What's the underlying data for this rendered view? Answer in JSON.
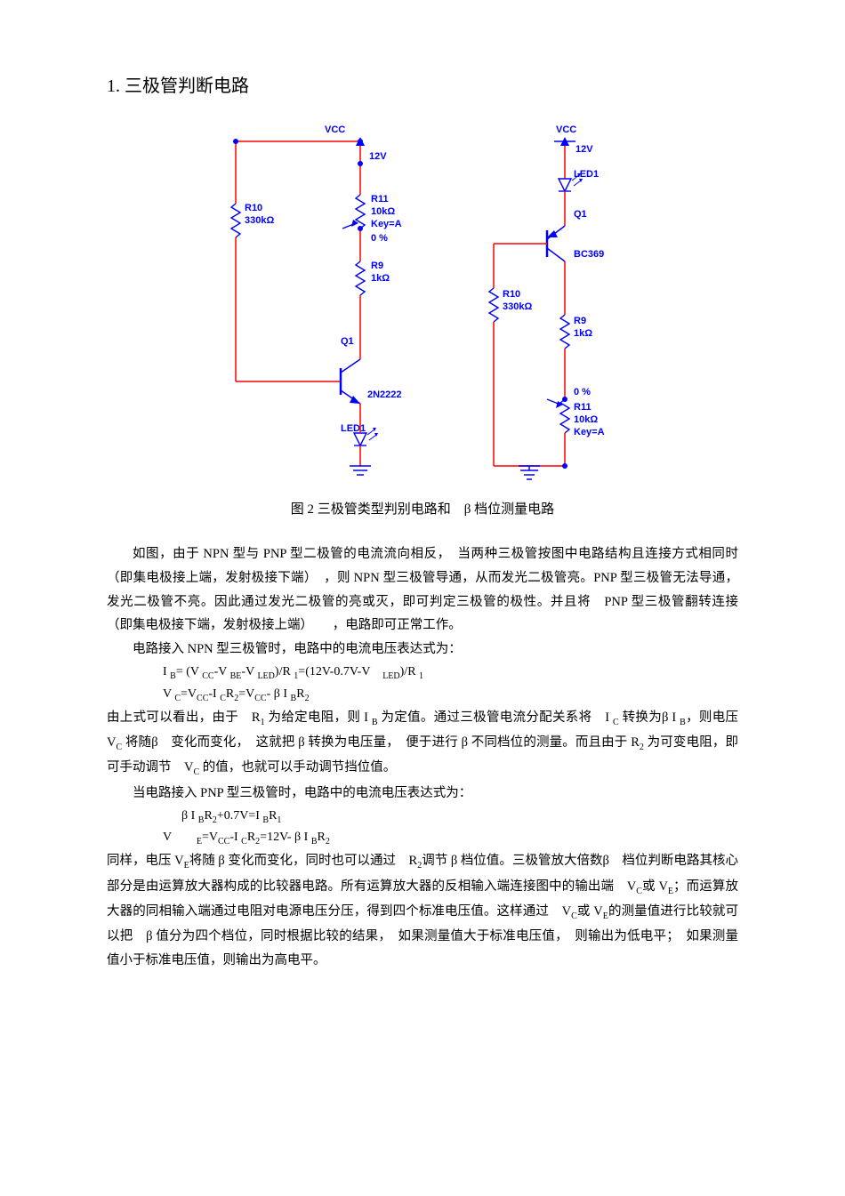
{
  "section_title": "1. 三极管判断电路",
  "caption": "图 2  三极管类型判别电路和　β 档位测量电路",
  "circuit_left": {
    "vcc_label": "VCC",
    "vcc_voltage": "12V",
    "r10_name": "R10",
    "r10_val": "330kΩ",
    "r11_name": "R11",
    "r11_val": "10kΩ",
    "r11_key": "Key=A",
    "r11_pct": "0 %",
    "r9_name": "R9",
    "r9_val": "1kΩ",
    "q1_name": "Q1",
    "q1_type": "2N2222",
    "led_name": "LED1",
    "colors": {
      "label": "#0000ff",
      "wire": "#ff0000",
      "bg": "#ffffff"
    }
  },
  "circuit_right": {
    "vcc_label": "VCC",
    "vcc_voltage": "12V",
    "led_name": "LED1",
    "q1_name": "Q1",
    "q1_type": "BC369",
    "r10_name": "R10",
    "r10_val": "330kΩ",
    "r9_name": "R9",
    "r9_val": "1kΩ",
    "r11_pct": "0 %",
    "r11_name": "R11",
    "r11_val": "10kΩ",
    "r11_key": "Key=A",
    "colors": {
      "label": "#0000ff",
      "wire": "#ff0000",
      "bg": "#ffffff"
    }
  },
  "paragraphs": {
    "p1": "如图，由于 NPN 型与 PNP 型二极管的电流流向相反，　当两种三极管按图中电路结构且连接方式相同时（即集电极接上端，发射极接下端）　，则 NPN 型三极管导通，从而发光二极管亮。PNP 型三极管无法导通，发光二极管不亮。因此通过发光二极管的亮或灭，即可判定三极管的极性。并且将　PNP 型三极管翻转连接（即集电极接下端，发射极接上端）　　，电路即可正常工作。",
    "p2": "电路接入 NPN 型三极管时，电路中的电流电压表达式为：",
    "f1_html": "I <span class='sub'>B</span>= (V <span class='sub'>CC</span>-V <span class='sub'>BE</span>-V <span class='sub'>LED</span>)/R <span class='sub'>1</span>=(12V-0.7V-V　<span class='sub'>LED</span>)/R <span class='sub'>1</span>",
    "f2_html": "V <span class='sub'>C</span>=V<span class='sub'>CC</span>-I <span class='sub'>C</span>R<span class='sub'>2</span>=V<span class='sub'>CC</span>- β I <span class='sub'>B</span>R<span class='sub'>2</span>",
    "p3_html": "由上式可以看出，由于　R<span class='sub'>1</span> 为给定电阻，则 I <span class='sub'>B</span> 为定值。通过三极管电流分配关系将　I <span class='sub'>C</span> 转换为β I <span class='sub'>B</span>，则电压 V<span class='sub'>C</span> 将随β　变化而变化，　这就把 β 转换为电压量，　便于进行 β 不同档位的测量。而且由于 R<span class='sub'>2</span> 为可变电阻，即可手动调节　V<span class='sub'>C</span> 的值，也就可以手动调节挡位值。",
    "p4": "当电路接入 PNP 型三极管时，电路中的电流电压表达式为：",
    "f3_html": "β I <span class='sub'>B</span>R<span class='sub'>2</span>+0.7V=I <span class='sub'>B</span>R<span class='sub'>1</span>",
    "f4_html": "V　　<span class='sub'>E</span>=V<span class='sub'>CC</span>-I <span class='sub'>C</span>R<span class='sub'>2</span>=12V- β I <span class='sub'>B</span>R<span class='sub'>2</span>",
    "p5_html": "同样，电压 V<span class='sub'>E</span>将随 β 变化而变化，同时也可以通过　R<span class='sub'>2</span>调节 β 档位值。三极管放大倍数β　档位判断电路其核心部分是由运算放大器构成的比较器电路。所有运算放大器的反相输入端连接图中的输出端　V<span class='sub'>C</span>或 V<span class='sub'>E</span>；而运算放大器的同相输入端通过电阻对电源电压分压，得到四个标准电压值。这样通过　V<span class='sub'>C</span>或 V<span class='sub'>E</span>的测量值进行比较就可以把　β 值分为四个档位，同时根据比较的结果，　如果测量值大于标准电压值，　则输出为低电平；　如果测量值小于标准电压值，则输出为高电平。"
  }
}
